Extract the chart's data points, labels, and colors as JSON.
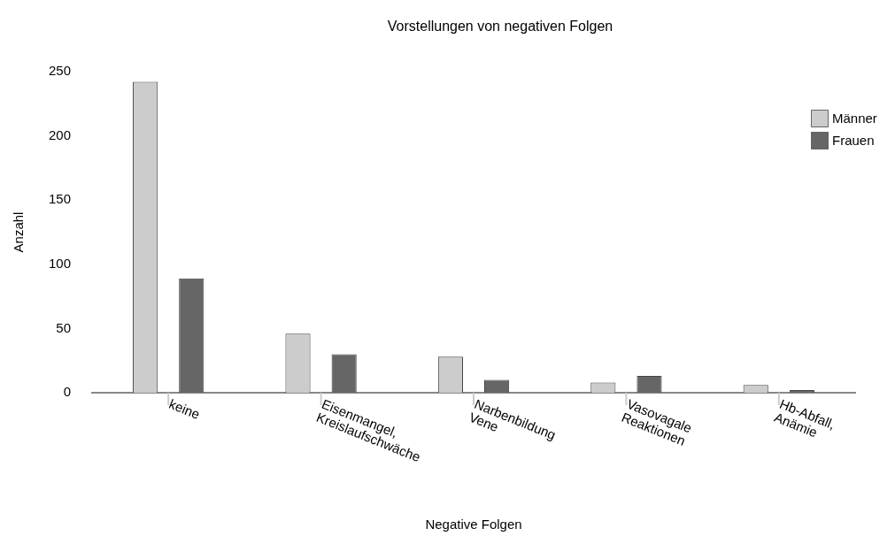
{
  "chart_data": {
    "type": "bar",
    "title": "Vorstellungen von negativen Folgen",
    "xlabel": "Negative Folgen",
    "ylabel": "Anzahl",
    "categories": [
      "keine",
      "Eisenmangel, Kreislaufschwäche",
      "Narbenbildung Vene",
      "Vasovagale Reaktionen",
      "Hb-Abfall, Anämie"
    ],
    "series": [
      {
        "name": "Männer",
        "color": "#cccccc",
        "values": [
          242,
          46,
          28,
          8,
          6
        ]
      },
      {
        "name": "Frauen",
        "color": "#666666",
        "values": [
          89,
          30,
          10,
          13,
          2
        ]
      }
    ],
    "ylim": [
      0,
      250
    ],
    "yticks": [
      0,
      50,
      100,
      150,
      200,
      250
    ],
    "legend": "top right"
  }
}
